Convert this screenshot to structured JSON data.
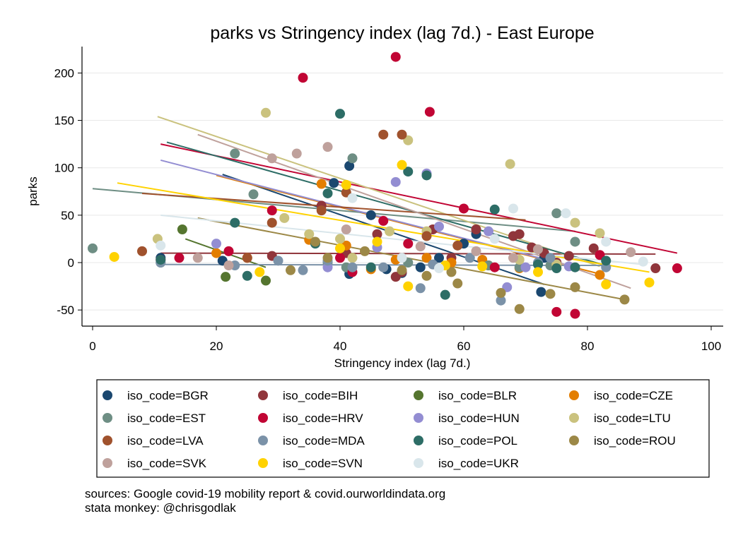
{
  "chart_data": {
    "type": "scatter",
    "title": "parks vs Stringency index (lag 7d.) - East Europe",
    "xlabel": "Stringency index (lag 7d.)",
    "ylabel": "parks",
    "xlim": [
      0,
      100
    ],
    "ylim": [
      -55,
      225
    ],
    "xticks": [
      0,
      20,
      40,
      60,
      80,
      100
    ],
    "yticks": [
      -50,
      0,
      50,
      100,
      150,
      200
    ],
    "grid": "horizontal",
    "legend_position": "bottom",
    "series": [
      {
        "name": "iso_code=BGR",
        "color": "#1a476f",
        "points": [
          [
            11,
            5
          ],
          [
            21,
            2
          ],
          [
            39,
            84
          ],
          [
            41.5,
            -12
          ],
          [
            41.5,
            102
          ],
          [
            45,
            50
          ],
          [
            47.5,
            -7
          ],
          [
            50,
            -11
          ],
          [
            53,
            -5
          ],
          [
            56,
            5
          ],
          [
            60,
            20
          ],
          [
            62,
            30
          ],
          [
            72.5,
            -31
          ],
          [
            73,
            5
          ]
        ],
        "fit": [
          [
            21,
            93
          ],
          [
            73,
            -23
          ]
        ]
      },
      {
        "name": "iso_code=BIH",
        "color": "#90353b",
        "points": [
          [
            29,
            7
          ],
          [
            37,
            60
          ],
          [
            41,
            10
          ],
          [
            46,
            30
          ],
          [
            49,
            -15
          ],
          [
            50,
            -10
          ],
          [
            55,
            35
          ],
          [
            58,
            5
          ],
          [
            62,
            35
          ],
          [
            68,
            28
          ],
          [
            69,
            30
          ],
          [
            71,
            16
          ],
          [
            73,
            10
          ],
          [
            75,
            0
          ],
          [
            77,
            7
          ],
          [
            81,
            15
          ],
          [
            91,
            -6
          ]
        ],
        "fit": [
          [
            11,
            10
          ],
          [
            91,
            9
          ]
        ]
      },
      {
        "name": "iso_code=BLR",
        "color": "#55752f",
        "points": [
          [
            14.5,
            35
          ],
          [
            21.5,
            -15
          ],
          [
            28,
            -19
          ]
        ],
        "fit": [
          [
            15,
            25
          ],
          [
            28,
            -5
          ]
        ]
      },
      {
        "name": "iso_code=CZE",
        "color": "#e37e00",
        "points": [
          [
            20,
            10
          ],
          [
            25,
            5
          ],
          [
            35,
            24
          ],
          [
            37,
            83
          ],
          [
            41,
            18
          ],
          [
            45,
            -7
          ],
          [
            49,
            3
          ],
          [
            54,
            5
          ],
          [
            58,
            0
          ],
          [
            63,
            3
          ],
          [
            64,
            -3
          ],
          [
            69,
            -6
          ],
          [
            75,
            -3
          ],
          [
            82,
            -13
          ]
        ],
        "fit": [
          [
            20,
            92
          ],
          [
            82,
            -12
          ]
        ]
      },
      {
        "name": "iso_code=EST",
        "color": "#6e8e84",
        "points": [
          [
            0,
            15
          ],
          [
            11,
            0
          ],
          [
            23,
            115
          ],
          [
            26,
            72
          ],
          [
            38,
            0
          ],
          [
            41,
            -5
          ],
          [
            42,
            110
          ],
          [
            51,
            0
          ],
          [
            64,
            -3
          ],
          [
            69,
            -5
          ],
          [
            74,
            -3
          ],
          [
            75,
            52
          ],
          [
            78,
            22
          ]
        ],
        "fit": [
          [
            0,
            78
          ],
          [
            78,
            33
          ]
        ]
      },
      {
        "name": "iso_code=HRV",
        "color": "#c10534",
        "points": [
          [
            11,
            3
          ],
          [
            14,
            5
          ],
          [
            22,
            12
          ],
          [
            29,
            55
          ],
          [
            34,
            195
          ],
          [
            40,
            5
          ],
          [
            42,
            -10
          ],
          [
            47,
            44
          ],
          [
            49,
            217
          ],
          [
            51,
            20
          ],
          [
            54.5,
            159
          ],
          [
            60,
            57
          ],
          [
            65,
            -5
          ],
          [
            75,
            -52
          ],
          [
            78,
            -54
          ],
          [
            82,
            8
          ],
          [
            94.5,
            -6
          ]
        ],
        "fit": [
          [
            11,
            125
          ],
          [
            94.5,
            10
          ]
        ]
      },
      {
        "name": "iso_code=HUN",
        "color": "#938dd2",
        "points": [
          [
            20,
            20
          ],
          [
            38,
            -5
          ],
          [
            46,
            16
          ],
          [
            49,
            85
          ],
          [
            54,
            94
          ],
          [
            56,
            38
          ],
          [
            64,
            33
          ],
          [
            67,
            -26
          ],
          [
            70,
            -5
          ],
          [
            77,
            -4
          ]
        ],
        "fit": [
          [
            11,
            108
          ],
          [
            77,
            -3
          ]
        ]
      },
      {
        "name": "iso_code=LTU",
        "color": "#cac27e",
        "points": [
          [
            10.5,
            25
          ],
          [
            28,
            158
          ],
          [
            31,
            47
          ],
          [
            35,
            30
          ],
          [
            40,
            25
          ],
          [
            42,
            5
          ],
          [
            48,
            33
          ],
          [
            51,
            129
          ],
          [
            54,
            33
          ],
          [
            67.5,
            104
          ],
          [
            69,
            3
          ],
          [
            75,
            -2
          ],
          [
            78,
            42
          ],
          [
            82,
            31
          ]
        ],
        "fit": [
          [
            10.5,
            154
          ],
          [
            82,
            -4
          ]
        ]
      },
      {
        "name": "iso_code=LVA",
        "color": "#a0522d",
        "points": [
          [
            8,
            12
          ],
          [
            25,
            5
          ],
          [
            29,
            42
          ],
          [
            37,
            55
          ],
          [
            41,
            74
          ],
          [
            47,
            135
          ],
          [
            50,
            135
          ],
          [
            54,
            28
          ],
          [
            59,
            18
          ]
        ],
        "fit": [
          [
            8,
            73
          ],
          [
            70,
            45
          ]
        ]
      },
      {
        "name": "iso_code=MDA",
        "color": "#7b92a8",
        "points": [
          [
            11,
            0
          ],
          [
            23,
            -3
          ],
          [
            30,
            2
          ],
          [
            34,
            -8
          ],
          [
            38,
            2
          ],
          [
            42,
            -5
          ],
          [
            47,
            -5
          ],
          [
            53,
            -27
          ],
          [
            55,
            -2
          ],
          [
            61,
            5
          ],
          [
            66,
            -40
          ],
          [
            72,
            0
          ],
          [
            74,
            5
          ],
          [
            83,
            -5
          ]
        ],
        "fit": [
          [
            11,
            -2
          ],
          [
            83,
            -3
          ]
        ]
      },
      {
        "name": "iso_code=POL",
        "color": "#2d6d66",
        "points": [
          [
            11,
            3
          ],
          [
            23,
            42
          ],
          [
            25,
            -14
          ],
          [
            36,
            20
          ],
          [
            38,
            73
          ],
          [
            40,
            157
          ],
          [
            45,
            -5
          ],
          [
            51,
            96
          ],
          [
            54,
            92
          ],
          [
            57,
            -34
          ],
          [
            65,
            56
          ],
          [
            72,
            -2
          ],
          [
            75,
            -6
          ],
          [
            78,
            -5
          ],
          [
            83,
            2
          ]
        ],
        "fit": [
          [
            12,
            127
          ],
          [
            83,
            -3
          ]
        ]
      },
      {
        "name": "iso_code=ROU",
        "color": "#9c8847",
        "points": [
          [
            32,
            -8
          ],
          [
            36,
            22
          ],
          [
            38,
            5
          ],
          [
            44,
            12
          ],
          [
            50,
            -8
          ],
          [
            54,
            -14
          ],
          [
            58,
            -10
          ],
          [
            59,
            -22
          ],
          [
            66,
            -32
          ],
          [
            69,
            -49
          ],
          [
            74,
            -33
          ],
          [
            78,
            -26
          ],
          [
            86,
            -39
          ]
        ],
        "fit": [
          [
            17,
            47
          ],
          [
            86,
            -39
          ]
        ]
      },
      {
        "name": "iso_code=SVK",
        "color": "#bfa19c",
        "points": [
          [
            17,
            5
          ],
          [
            22,
            -3
          ],
          [
            29,
            110
          ],
          [
            33,
            115
          ],
          [
            38,
            122
          ],
          [
            41,
            35
          ],
          [
            53,
            17
          ],
          [
            62,
            12
          ],
          [
            68,
            5
          ],
          [
            72,
            14
          ],
          [
            87,
            11
          ]
        ],
        "fit": [
          [
            17,
            135
          ],
          [
            87,
            -27
          ]
        ]
      },
      {
        "name": "iso_code=SVN",
        "color": "#ffd200",
        "points": [
          [
            3.5,
            6
          ],
          [
            27,
            -10
          ],
          [
            40,
            15
          ],
          [
            41,
            82
          ],
          [
            46,
            22
          ],
          [
            50,
            103
          ],
          [
            51,
            -25
          ],
          [
            57,
            -3
          ],
          [
            63,
            -4
          ],
          [
            72,
            -10
          ],
          [
            83,
            -23
          ],
          [
            90,
            -21
          ]
        ],
        "fit": [
          [
            4,
            84
          ],
          [
            90,
            -10
          ]
        ]
      },
      {
        "name": "iso_code=UKR",
        "color": "#d9e6eb",
        "points": [
          [
            11,
            18
          ],
          [
            42,
            68
          ],
          [
            50,
            5
          ],
          [
            56,
            -6
          ],
          [
            65,
            25
          ],
          [
            68,
            57
          ],
          [
            76.5,
            52
          ],
          [
            83,
            22
          ],
          [
            89,
            1
          ]
        ],
        "fit": [
          [
            11,
            50
          ],
          [
            89,
            -2
          ]
        ]
      }
    ],
    "legend": [
      "iso_code=BGR",
      "iso_code=BIH",
      "iso_code=BLR",
      "iso_code=CZE",
      "iso_code=EST",
      "iso_code=HRV",
      "iso_code=HUN",
      "iso_code=LTU",
      "iso_code=LVA",
      "iso_code=MDA",
      "iso_code=POL",
      "iso_code=ROU",
      "iso_code=SVK",
      "iso_code=SVN",
      "iso_code=UKR"
    ]
  },
  "notes": {
    "line1": "sources: Google covid-19 mobility report & covid.ourworldindata.org",
    "line2": "stata monkey: @chrisgodlak"
  }
}
